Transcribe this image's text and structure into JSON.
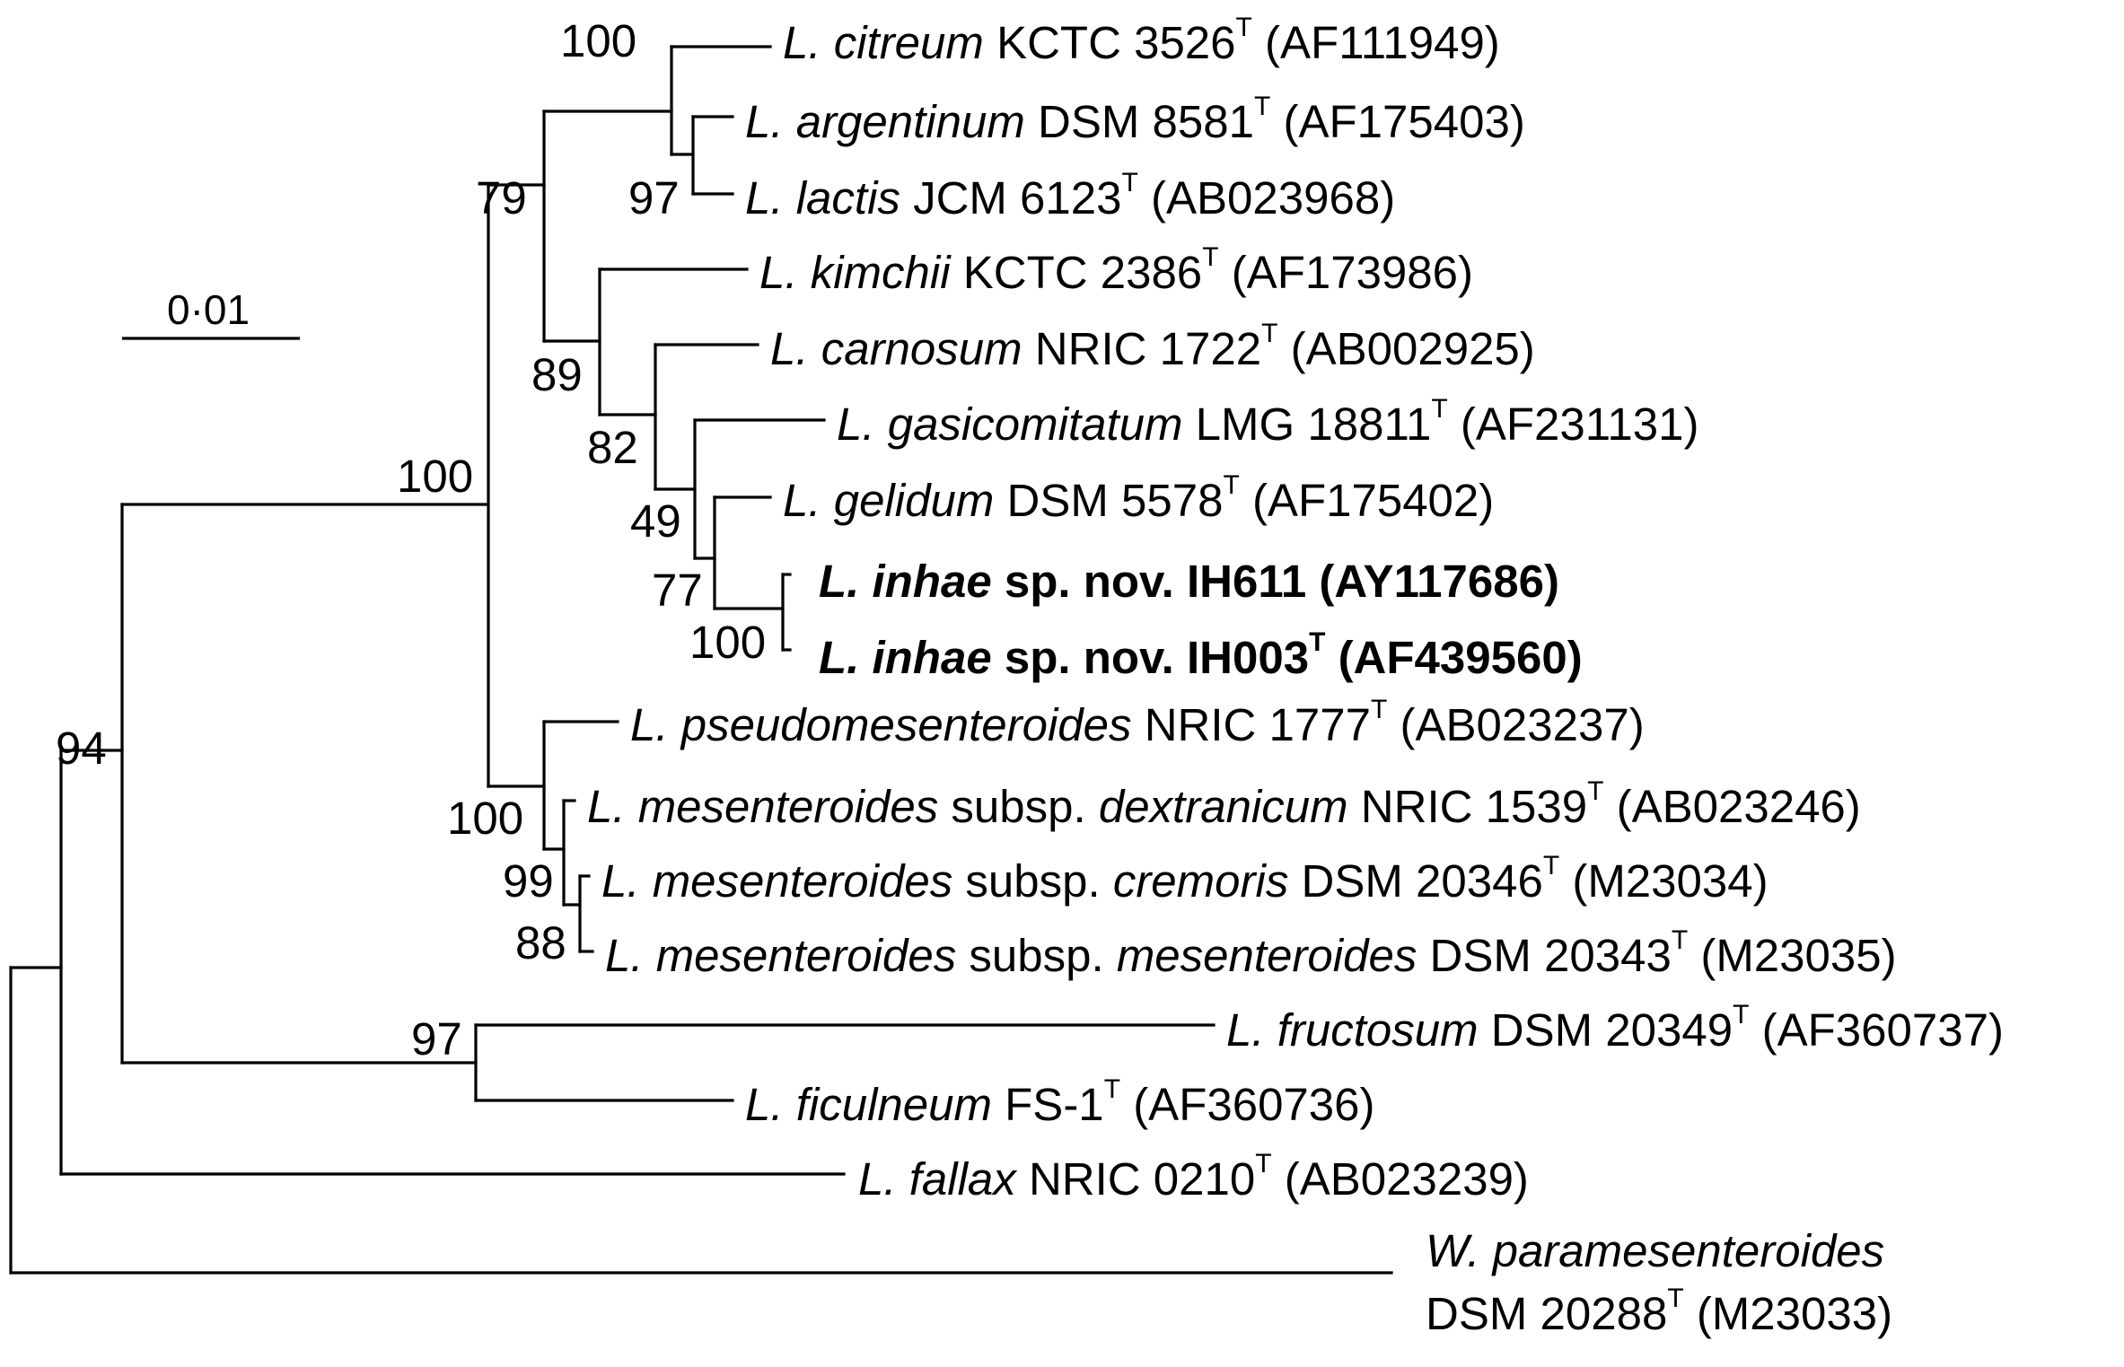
{
  "scale_bar": {
    "label": "0·01"
  },
  "taxa": [
    {
      "species": "L. citreum",
      "strain": "KCTC 3526",
      "type": "T",
      "accession": "(AF111949)"
    },
    {
      "species": "L. argentinum",
      "strain": "DSM 8581",
      "type": "T",
      "accession": "(AF175403)"
    },
    {
      "species": "L. lactis",
      "strain": "JCM 6123",
      "type": "T",
      "accession": "(AB023968)"
    },
    {
      "species": "L. kimchii",
      "strain": "KCTC 2386",
      "type": "T",
      "accession": "(AF173986)"
    },
    {
      "species": "L. carnosum",
      "strain": "NRIC 1722",
      "type": "T",
      "accession": "(AB002925)"
    },
    {
      "species": "L. gasicomitatum",
      "strain": "LMG 18811",
      "type": "T",
      "accession": "(AF231131)"
    },
    {
      "species": "L. gelidum",
      "strain": "DSM 5578",
      "type": "T",
      "accession": "(AF175402)"
    },
    {
      "species": "L. inhae",
      "novel": "sp. nov.",
      "strain": "IH611",
      "type": "",
      "accession": "(AY117686)"
    },
    {
      "species": "L. inhae",
      "novel": "sp. nov.",
      "strain": "IH003",
      "type": "T",
      "accession": "(AF439560)"
    },
    {
      "species": "L. pseudomesenteroides",
      "strain": "NRIC 1777",
      "type": "T",
      "accession": "(AB023237)"
    },
    {
      "species": "L. mesenteroides",
      "subsp_word": "subsp.",
      "subsp": "dextranicum",
      "strain": "NRIC 1539",
      "type": "T",
      "accession": "(AB023246)"
    },
    {
      "species": "L. mesenteroides",
      "subsp_word": "subsp.",
      "subsp": "cremoris",
      "strain": "DSM 20346",
      "type": "T",
      "accession": "(M23034)"
    },
    {
      "species": "L. mesenteroides",
      "subsp_word": "subsp.",
      "subsp": "mesenteroides",
      "strain": "DSM 20343",
      "type": "T",
      "accession": "(M23035)"
    },
    {
      "species": "L. fructosum",
      "strain": "DSM 20349",
      "type": "T",
      "accession": "(AF360737)"
    },
    {
      "species": "L. ficulneum",
      "strain": "FS-1",
      "type": "T",
      "accession": "(AF360736)"
    },
    {
      "species": "L. fallax",
      "strain": "NRIC 0210",
      "type": "T",
      "accession": "(AB023239)"
    },
    {
      "species": "W. paramesenteroides",
      "strain": "DSM 20288",
      "type": "T",
      "accession": "(M23033)"
    }
  ],
  "bootstrap": {
    "citreum_argentinum_lactis": "100",
    "argentinum_lactis": "97",
    "citreum_group_kimchii_group": "79",
    "kimchii_group": "89",
    "carnosum_group": "82",
    "gasicomitatum_group": "49",
    "gelidum_inhae": "77",
    "inhae_strains": "100",
    "leuconostoc_core": "100",
    "pseudomesenteroides_group": "100",
    "mesenteroides_subspecies": "99",
    "cremoris_mesenteroides": "88",
    "fructosum_ficulneum": "97",
    "root_ingroup": "94"
  }
}
